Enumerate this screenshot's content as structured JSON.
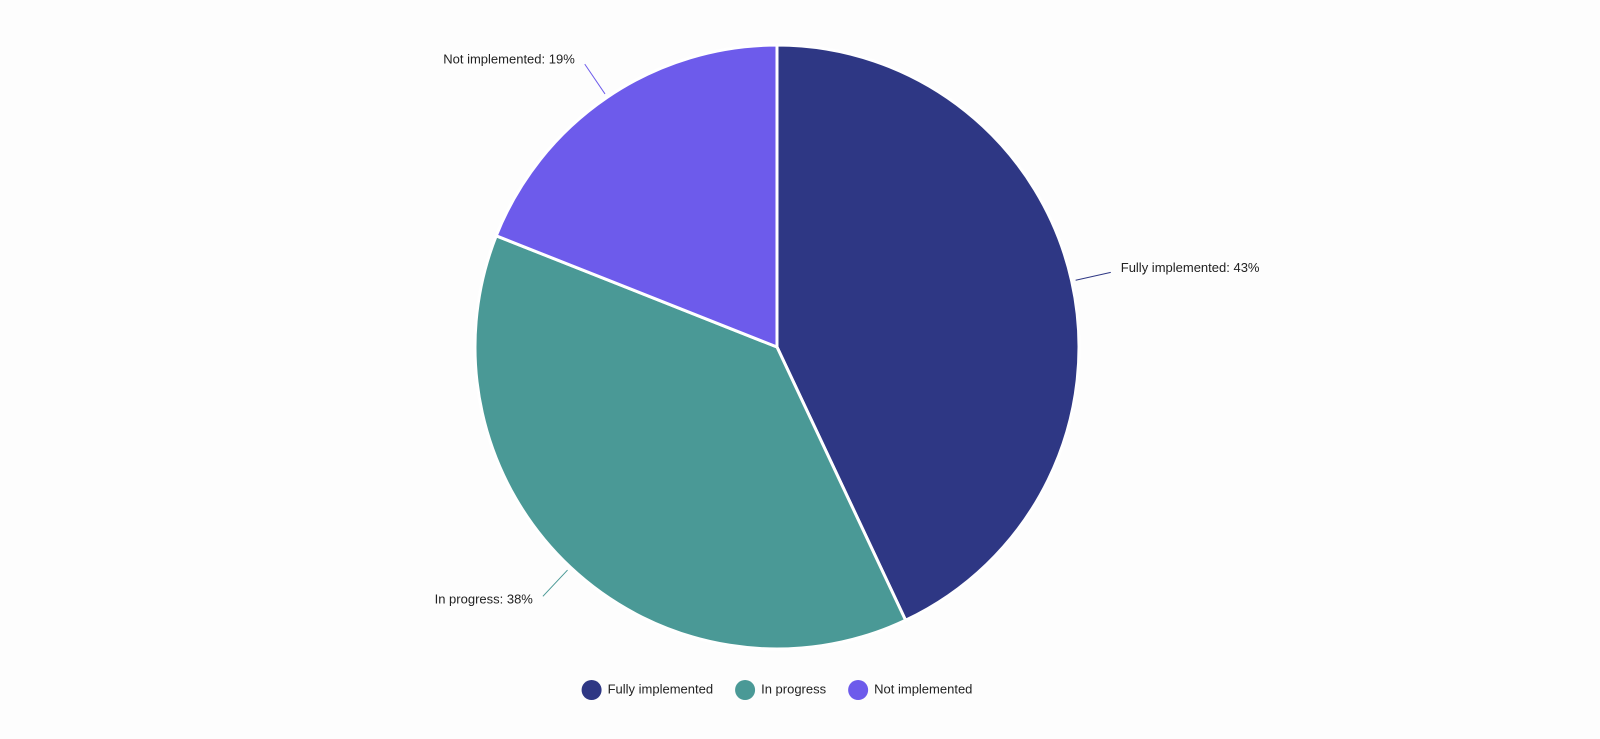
{
  "chart_data": {
    "type": "pie",
    "categories": [
      "Fully implemented",
      "In progress",
      "Not implemented"
    ],
    "values": [
      43,
      38,
      19
    ],
    "value_labels": [
      "Fully implemented: 43%",
      "In progress: 38%",
      "Not implemented: 19%"
    ],
    "colors": [
      "#2e3784",
      "#4a9996",
      "#6d5beb"
    ],
    "legend": "bottom"
  }
}
